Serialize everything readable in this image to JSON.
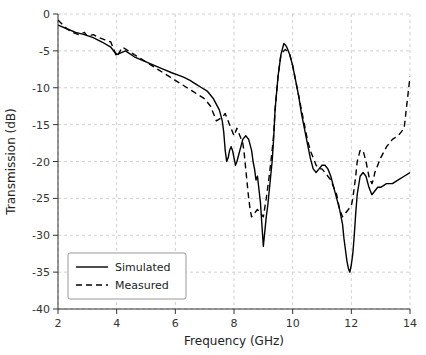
{
  "chart_data": {
    "type": "line",
    "xlabel": "Frequency (GHz)",
    "ylabel": "Transmission (dB)",
    "xlim": [
      2,
      14
    ],
    "ylim": [
      -40,
      0
    ],
    "xticks": [
      2,
      4,
      6,
      8,
      10,
      12,
      14
    ],
    "yticks": [
      0,
      -5,
      -10,
      -15,
      -20,
      -25,
      -30,
      -35,
      -40
    ],
    "grid": true,
    "legend": "lower left",
    "series": [
      {
        "name": "Simulated",
        "color": "#000000",
        "line_style": "solid",
        "x": [
          2.0,
          2.3,
          2.6,
          2.9,
          3.2,
          3.5,
          3.8,
          4.0,
          4.3,
          4.6,
          5.0,
          5.3,
          5.6,
          5.9,
          6.1,
          6.3,
          6.5,
          6.7,
          6.9,
          7.1,
          7.3,
          7.5,
          7.6,
          7.65,
          7.7,
          7.75,
          7.8,
          7.85,
          7.9,
          7.95,
          8.0,
          8.05,
          8.1,
          8.2,
          8.3,
          8.4,
          8.5,
          8.6,
          8.65,
          8.7,
          8.75,
          8.8,
          8.9,
          9.0,
          9.1,
          9.15,
          9.2,
          9.25,
          9.3,
          9.35,
          9.4,
          9.5,
          9.6,
          9.7,
          9.75,
          9.8,
          9.9,
          10.0,
          10.1,
          10.2,
          10.3,
          10.4,
          10.5,
          10.6,
          10.7,
          10.8,
          10.9,
          11.0,
          11.1,
          11.2,
          11.3,
          11.4,
          11.5,
          11.6,
          11.7,
          11.75,
          11.8,
          11.85,
          11.9,
          11.95,
          12.0,
          12.05,
          12.1,
          12.15,
          12.2,
          12.3,
          12.4,
          12.5,
          12.6,
          12.7,
          12.8,
          12.9,
          13.0,
          13.2,
          13.4,
          13.6,
          13.8,
          14.0
        ],
        "values": [
          -1.5,
          -2.0,
          -2.5,
          -2.8,
          -3.2,
          -3.8,
          -4.5,
          -5.5,
          -5.0,
          -5.8,
          -6.5,
          -7.0,
          -7.5,
          -8.0,
          -8.3,
          -8.6,
          -9.0,
          -9.5,
          -10.0,
          -10.5,
          -11.5,
          -13.0,
          -14.5,
          -16.0,
          -18.5,
          -20.0,
          -19.5,
          -18.5,
          -18.0,
          -18.5,
          -19.5,
          -20.5,
          -20.0,
          -18.5,
          -17.0,
          -16.5,
          -17.0,
          -18.5,
          -20.0,
          -21.0,
          -22.5,
          -22.0,
          -25.5,
          -31.5,
          -27.5,
          -26.0,
          -24.0,
          -22.0,
          -20.0,
          -17.0,
          -13.0,
          -8.5,
          -5.5,
          -4.0,
          -4.2,
          -4.5,
          -5.5,
          -7.0,
          -9.0,
          -11.0,
          -13.5,
          -15.5,
          -17.5,
          -19.5,
          -21.0,
          -21.5,
          -21.0,
          -20.5,
          -20.5,
          -21.0,
          -22.0,
          -23.5,
          -25.0,
          -26.5,
          -28.5,
          -30.5,
          -32.0,
          -33.5,
          -34.5,
          -35.0,
          -34.0,
          -32.5,
          -30.0,
          -27.0,
          -24.5,
          -22.0,
          -21.5,
          -22.0,
          -23.5,
          -24.5,
          -24.0,
          -23.5,
          -23.5,
          -23.0,
          -23.0,
          -22.5,
          -22.0,
          -21.5
        ]
      },
      {
        "name": "Measured",
        "color": "#000000",
        "line_style": "dashed",
        "x": [
          2.0,
          2.3,
          2.5,
          2.7,
          2.9,
          3.0,
          3.2,
          3.4,
          3.6,
          3.8,
          4.0,
          4.2,
          4.4,
          4.6,
          4.8,
          5.0,
          5.2,
          5.4,
          5.6,
          5.8,
          6.0,
          6.2,
          6.4,
          6.6,
          6.8,
          7.0,
          7.2,
          7.4,
          7.6,
          7.7,
          7.8,
          7.9,
          8.0,
          8.1,
          8.2,
          8.3,
          8.35,
          8.4,
          8.45,
          8.5,
          8.55,
          8.6,
          8.7,
          8.8,
          8.9,
          9.0,
          9.1,
          9.2,
          9.3,
          9.35,
          9.4,
          9.5,
          9.6,
          9.7,
          9.75,
          9.8,
          9.85,
          9.9,
          10.0,
          10.1,
          10.2,
          10.3,
          10.4,
          10.5,
          10.6,
          10.7,
          10.8,
          10.9,
          11.0,
          11.1,
          11.2,
          11.3,
          11.4,
          11.5,
          11.6,
          11.7,
          11.8,
          11.9,
          12.0,
          12.05,
          12.1,
          12.15,
          12.2,
          12.3,
          12.4,
          12.5,
          12.6,
          12.7,
          12.75,
          12.8,
          12.9,
          13.0,
          13.2,
          13.4,
          13.6,
          13.8,
          14.0
        ],
        "values": [
          -0.8,
          -2.0,
          -2.5,
          -2.8,
          -2.5,
          -3.0,
          -2.8,
          -3.2,
          -3.5,
          -3.8,
          -5.8,
          -4.5,
          -5.0,
          -5.5,
          -6.0,
          -6.5,
          -7.0,
          -7.5,
          -8.0,
          -8.5,
          -9.0,
          -9.5,
          -10.0,
          -10.5,
          -11.0,
          -11.5,
          -12.5,
          -14.5,
          -14.0,
          -13.5,
          -14.5,
          -15.5,
          -16.5,
          -15.5,
          -16.5,
          -17.5,
          -19.0,
          -21.0,
          -23.0,
          -25.0,
          -26.5,
          -27.5,
          -27.0,
          -26.5,
          -27.0,
          -27.5,
          -25.0,
          -22.0,
          -18.5,
          -16.5,
          -13.0,
          -8.5,
          -5.5,
          -5.0,
          -4.8,
          -5.0,
          -5.2,
          -5.5,
          -7.0,
          -9.0,
          -11.0,
          -13.0,
          -15.0,
          -17.0,
          -18.5,
          -19.5,
          -20.5,
          -21.0,
          -21.0,
          -21.5,
          -22.0,
          -22.5,
          -23.5,
          -24.5,
          -26.5,
          -27.5,
          -27.0,
          -26.5,
          -26.0,
          -25.0,
          -23.5,
          -22.0,
          -20.0,
          -18.5,
          -18.5,
          -20.0,
          -22.0,
          -23.0,
          -22.5,
          -21.5,
          -20.5,
          -19.5,
          -18.0,
          -17.0,
          -16.5,
          -15.5,
          -8.5
        ]
      }
    ]
  }
}
